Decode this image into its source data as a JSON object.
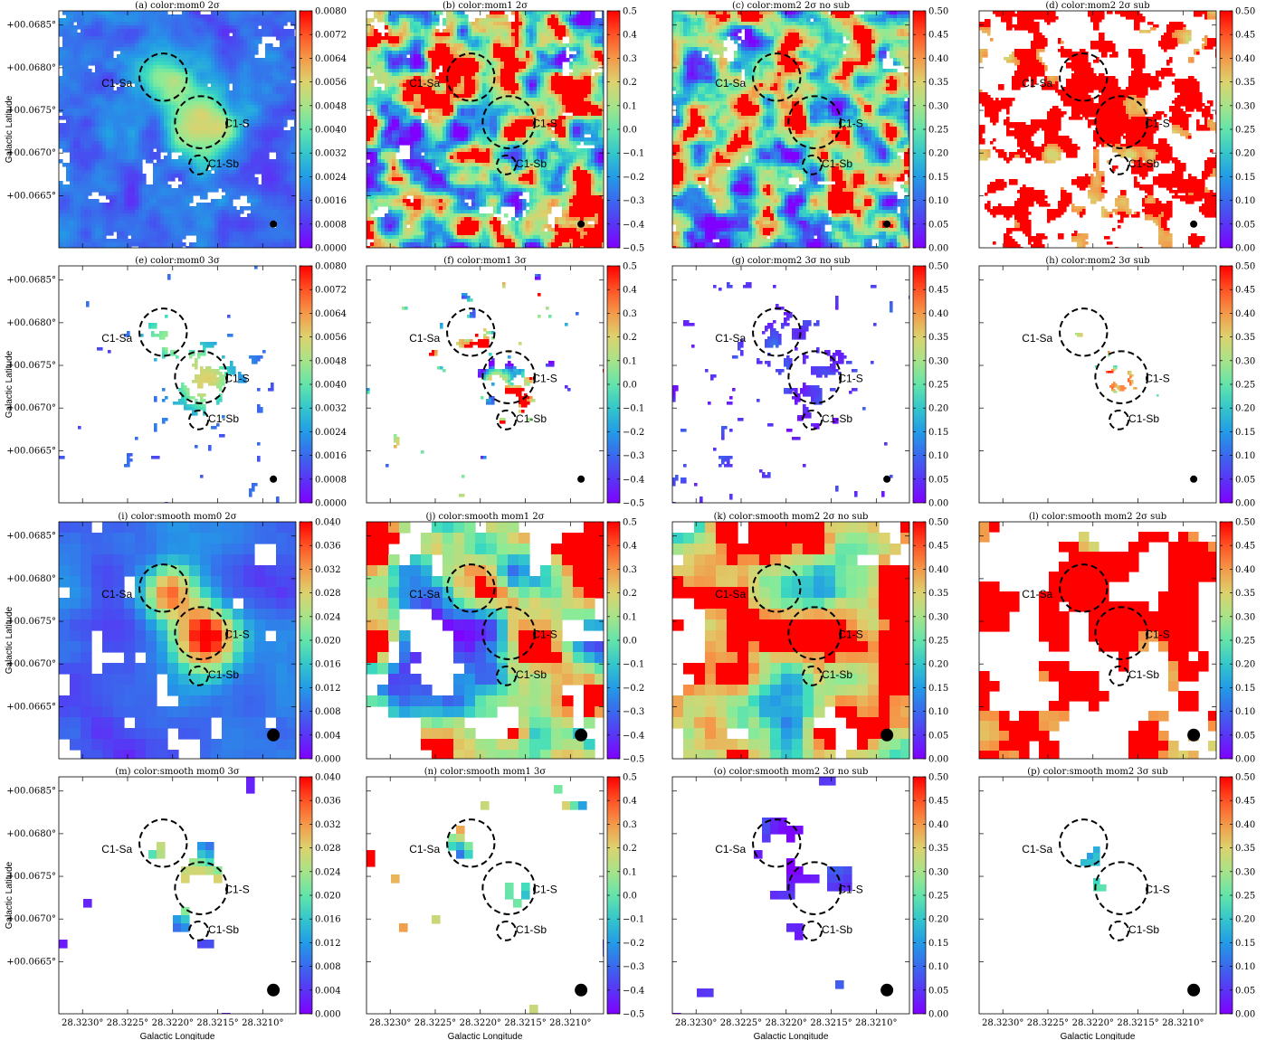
{
  "figure": {
    "ylabel": "Galactic Latitude",
    "xlabel": "Galactic Longitude",
    "lat_ticks": [
      "+00.0685°",
      "+00.0680°",
      "+00.0675°",
      "+00.0670°",
      "+00.0665°"
    ],
    "lon_ticks": [
      "28.3230°",
      "28.3225°",
      "28.3220°",
      "28.3215°",
      "28.3210°"
    ],
    "cores": [
      "C1-Sa",
      "C1-S",
      "C1-Sb"
    ]
  },
  "colorbars": {
    "mom0": [
      "0.0080",
      "0.0072",
      "0.0064",
      "0.0056",
      "0.0048",
      "0.0040",
      "0.0032",
      "0.0024",
      "0.0016",
      "0.0008",
      "0.0000"
    ],
    "mom0s": [
      "0.040",
      "0.036",
      "0.032",
      "0.028",
      "0.024",
      "0.020",
      "0.016",
      "0.012",
      "0.008",
      "0.004",
      "0.000"
    ],
    "mom1": [
      "0.5",
      "0.4",
      "0.3",
      "0.2",
      "0.1",
      "0.0",
      "−0.1",
      "−0.2",
      "−0.3",
      "−0.4",
      "−0.5"
    ],
    "mom2": [
      "0.50",
      "0.45",
      "0.40",
      "0.35",
      "0.30",
      "0.25",
      "0.20",
      "0.15",
      "0.10",
      "0.05",
      "0.00"
    ]
  },
  "panels": [
    {
      "title": "(a) color:mom0 2σ",
      "cbar": "mom0",
      "density": 0.85,
      "scale": 6,
      "blob": 4,
      "bias": 0.2,
      "spread": 0.15,
      "clip": false
    },
    {
      "title": "(b) color:mom1 2σ",
      "cbar": "mom1",
      "density": 0.85,
      "scale": 6,
      "blob": 4,
      "bias": 0.5,
      "spread": 0.9,
      "clip": true
    },
    {
      "title": "(c) color:mom2 2σ no sub",
      "cbar": "mom2",
      "density": 0.9,
      "scale": 6,
      "blob": 4,
      "bias": 0.5,
      "spread": 0.9,
      "clip": true
    },
    {
      "title": "(d) color:mom2 2σ sub",
      "cbar": "mom2",
      "density": 0.5,
      "scale": 6,
      "blob": 3,
      "bias": 0.9,
      "spread": 0.3,
      "clip": true
    },
    {
      "title": "(e) color:mom0 3σ",
      "cbar": "mom0",
      "density": 0.2,
      "scale": 4,
      "blob": 3,
      "bias": 0.18,
      "spread": 0.1,
      "clip": false
    },
    {
      "title": "(f) color:mom1 3σ",
      "cbar": "mom1",
      "density": 0.2,
      "scale": 4,
      "blob": 3,
      "bias": 0.5,
      "spread": 0.9,
      "clip": true
    },
    {
      "title": "(g) color:mom2 3σ no sub",
      "cbar": "mom2",
      "density": 0.25,
      "scale": 4,
      "blob": 3,
      "bias": 0.1,
      "spread": 0.15,
      "clip": false
    },
    {
      "title": "(h) color:mom2 3σ sub",
      "cbar": "mom2",
      "density": 0.02,
      "scale": 3,
      "blob": 2,
      "bias": 0.6,
      "spread": 0.6,
      "clip": false
    },
    {
      "title": "(i) color:smooth mom0 2σ",
      "cbar": "mom0s",
      "density": 0.78,
      "scale": 14,
      "blob": 12,
      "bias": 0.2,
      "spread": 0.15,
      "clip": false
    },
    {
      "title": "(j) color:smooth mom1 2σ",
      "cbar": "mom1",
      "density": 0.75,
      "scale": 14,
      "blob": 12,
      "bias": 0.55,
      "spread": 0.8,
      "clip": true
    },
    {
      "title": "(k) color:smooth mom2 2σ no sub",
      "cbar": "mom2",
      "density": 0.82,
      "scale": 14,
      "blob": 12,
      "bias": 0.7,
      "spread": 0.7,
      "clip": true
    },
    {
      "title": "(l) color:smooth mom2 2σ sub",
      "cbar": "mom2",
      "density": 0.5,
      "scale": 14,
      "blob": 11,
      "bias": 0.85,
      "spread": 0.35,
      "clip": true
    },
    {
      "title": "(m) color:smooth mom0 3σ",
      "cbar": "mom0s",
      "density": 0.22,
      "scale": 10,
      "blob": 9,
      "bias": 0.06,
      "spread": 0.05,
      "clip": false
    },
    {
      "title": "(n) color:smooth mom1 3σ",
      "cbar": "mom1",
      "density": 0.22,
      "scale": 10,
      "blob": 9,
      "bias": 0.5,
      "spread": 0.8,
      "clip": true
    },
    {
      "title": "(o) color:smooth mom2 3σ no sub",
      "cbar": "mom2",
      "density": 0.22,
      "scale": 10,
      "blob": 9,
      "bias": 0.1,
      "spread": 0.2,
      "clip": false
    },
    {
      "title": "(p) color:smooth mom2 3σ sub",
      "cbar": "mom2",
      "density": 0.05,
      "scale": 8,
      "blob": 7,
      "bias": 0.5,
      "spread": 0.7,
      "clip": false
    }
  ]
}
